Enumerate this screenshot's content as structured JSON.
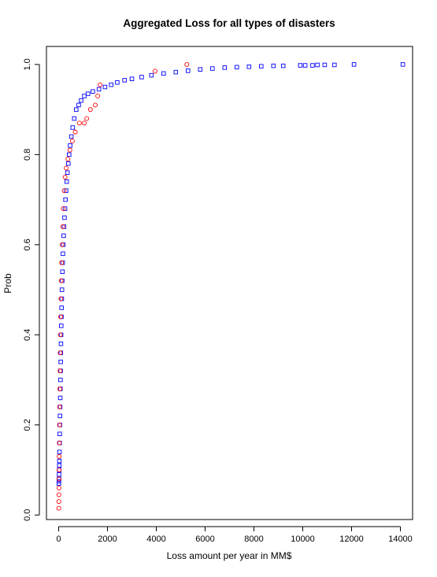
{
  "chart_data": {
    "type": "scatter",
    "title": "Aggregated Loss for all types of disasters",
    "xlabel": "Loss amount per year in MM$",
    "ylabel": "Prob",
    "xlim": [
      -500,
      14500
    ],
    "ylim": [
      -0.01,
      1.04
    ],
    "x_ticks": [
      0,
      2000,
      4000,
      6000,
      8000,
      10000,
      12000,
      14000
    ],
    "x_tick_labels": [
      "0",
      "2000",
      "4000",
      "6000",
      "8000",
      "10000",
      "12000",
      "14000"
    ],
    "y_ticks": [
      0.0,
      0.2,
      0.4,
      0.6,
      0.8,
      1.0
    ],
    "y_tick_labels": [
      "0.0",
      "0.2",
      "0.4",
      "0.6",
      "0.8",
      "1.0"
    ],
    "grid": false,
    "legend": "none",
    "series": [
      {
        "color": "#0000FF",
        "marker": "square-open",
        "points": [
          [
            8,
            0.07
          ],
          [
            12,
            0.075
          ],
          [
            15,
            0.08
          ],
          [
            18,
            0.09
          ],
          [
            22,
            0.1
          ],
          [
            26,
            0.11
          ],
          [
            30,
            0.12
          ],
          [
            35,
            0.14
          ],
          [
            40,
            0.16
          ],
          [
            45,
            0.18
          ],
          [
            50,
            0.2
          ],
          [
            55,
            0.22
          ],
          [
            60,
            0.24
          ],
          [
            65,
            0.26
          ],
          [
            70,
            0.28
          ],
          [
            75,
            0.3
          ],
          [
            80,
            0.32
          ],
          [
            85,
            0.34
          ],
          [
            90,
            0.36
          ],
          [
            95,
            0.38
          ],
          [
            100,
            0.4
          ],
          [
            105,
            0.42
          ],
          [
            112,
            0.44
          ],
          [
            120,
            0.46
          ],
          [
            128,
            0.48
          ],
          [
            135,
            0.5
          ],
          [
            145,
            0.52
          ],
          [
            155,
            0.54
          ],
          [
            165,
            0.56
          ],
          [
            175,
            0.58
          ],
          [
            190,
            0.6
          ],
          [
            205,
            0.62
          ],
          [
            220,
            0.64
          ],
          [
            240,
            0.66
          ],
          [
            260,
            0.68
          ],
          [
            280,
            0.7
          ],
          [
            305,
            0.72
          ],
          [
            330,
            0.74
          ],
          [
            360,
            0.76
          ],
          [
            395,
            0.78
          ],
          [
            430,
            0.8
          ],
          [
            470,
            0.82
          ],
          [
            520,
            0.84
          ],
          [
            575,
            0.86
          ],
          [
            640,
            0.88
          ],
          [
            720,
            0.9
          ],
          [
            820,
            0.91
          ],
          [
            920,
            0.92
          ],
          [
            1050,
            0.93
          ],
          [
            1200,
            0.935
          ],
          [
            1400,
            0.94
          ],
          [
            1650,
            0.945
          ],
          [
            1900,
            0.95
          ],
          [
            2150,
            0.955
          ],
          [
            2400,
            0.96
          ],
          [
            2700,
            0.965
          ],
          [
            3000,
            0.968
          ],
          [
            3400,
            0.972
          ],
          [
            3800,
            0.976
          ],
          [
            4300,
            0.98
          ],
          [
            4800,
            0.983
          ],
          [
            5300,
            0.986
          ],
          [
            5800,
            0.989
          ],
          [
            6300,
            0.991
          ],
          [
            6800,
            0.993
          ],
          [
            7300,
            0.994
          ],
          [
            7800,
            0.995
          ],
          [
            8300,
            0.996
          ],
          [
            8800,
            0.997
          ],
          [
            9200,
            0.997
          ],
          [
            9900,
            0.998
          ],
          [
            10100,
            0.998
          ],
          [
            10400,
            0.998
          ],
          [
            10600,
            0.999
          ],
          [
            10900,
            0.999
          ],
          [
            11300,
            0.999
          ],
          [
            12100,
            1.0
          ],
          [
            14100,
            1.0
          ]
        ]
      },
      {
        "color": "#FF0000",
        "marker": "circle-open",
        "points": [
          [
            5,
            0.015
          ],
          [
            8,
            0.03
          ],
          [
            10,
            0.045
          ],
          [
            12,
            0.06
          ],
          [
            15,
            0.08
          ],
          [
            18,
            0.1
          ],
          [
            22,
            0.13
          ],
          [
            28,
            0.16
          ],
          [
            34,
            0.2
          ],
          [
            40,
            0.24
          ],
          [
            48,
            0.28
          ],
          [
            55,
            0.32
          ],
          [
            62,
            0.36
          ],
          [
            70,
            0.4
          ],
          [
            80,
            0.44
          ],
          [
            92,
            0.48
          ],
          [
            105,
            0.52
          ],
          [
            120,
            0.56
          ],
          [
            140,
            0.6
          ],
          [
            165,
            0.64
          ],
          [
            190,
            0.68
          ],
          [
            225,
            0.72
          ],
          [
            265,
            0.75
          ],
          [
            310,
            0.77
          ],
          [
            380,
            0.79
          ],
          [
            460,
            0.81
          ],
          [
            560,
            0.83
          ],
          [
            680,
            0.85
          ],
          [
            850,
            0.87
          ],
          [
            1050,
            0.87
          ],
          [
            1150,
            0.88
          ],
          [
            1300,
            0.9
          ],
          [
            1500,
            0.91
          ],
          [
            1600,
            0.93
          ],
          [
            1700,
            0.955
          ],
          [
            3950,
            0.985
          ],
          [
            5250,
            1.0
          ]
        ]
      }
    ]
  }
}
